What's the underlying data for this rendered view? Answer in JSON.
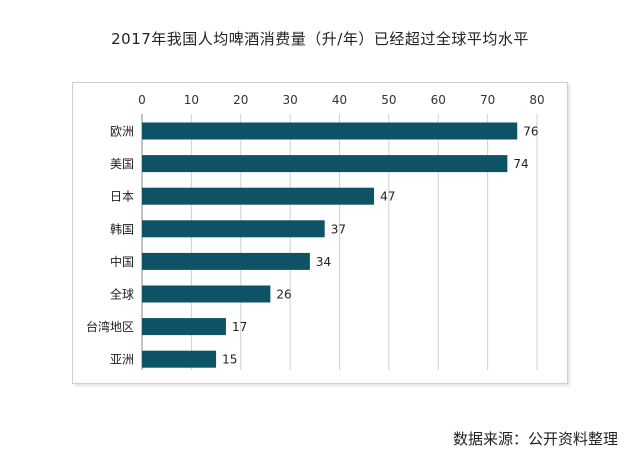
{
  "title": "2017年我国人均啤酒消费量（升/年）已经超过全球平均水平",
  "source": "数据来源：公开资料整理",
  "colors": {
    "bar": "#0e5266",
    "grid": "#d0d0d0",
    "axis": "#888888"
  },
  "chart_data": {
    "type": "bar",
    "orientation": "horizontal",
    "title": "2017年我国人均啤酒消费量（升/年）已经超过全球平均水平",
    "categories": [
      "欧洲",
      "美国",
      "日本",
      "韩国",
      "中国",
      "全球",
      "台湾地区",
      "亚洲"
    ],
    "values": [
      76,
      74,
      47,
      37,
      34,
      26,
      17,
      15
    ],
    "xlim": [
      0,
      80
    ],
    "x_ticks": [
      0,
      10,
      20,
      30,
      40,
      50,
      60,
      70,
      80
    ],
    "x_axis_position": "top",
    "grid": true,
    "legend": "none",
    "data_labels": true
  }
}
